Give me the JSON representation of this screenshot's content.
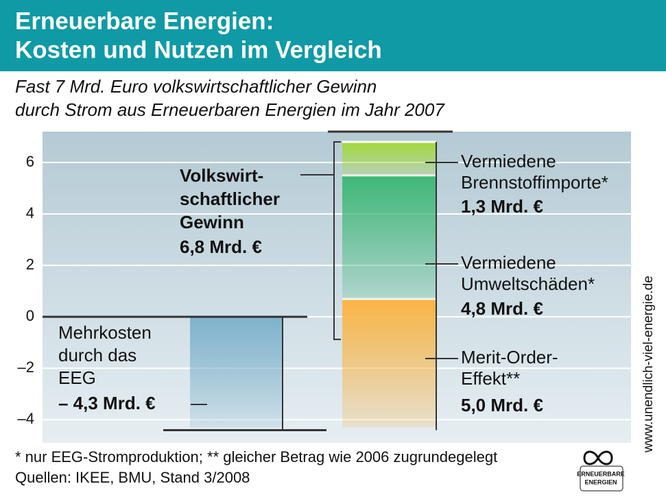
{
  "chart_data": {
    "type": "bar",
    "title": [
      "Erneuerbare Energien:",
      "Kosten und Nutzen im Vergleich"
    ],
    "subtitle": [
      "Fast 7 Mrd. Euro volkswirtschaftlicher Gewinn",
      "durch Strom aus Erneuerbaren Energien im Jahr 2007"
    ],
    "ylim": [
      -4.9,
      7.2
    ],
    "yticks": [
      {
        "value": 6,
        "label": "6"
      },
      {
        "value": 4,
        "label": "4"
      },
      {
        "value": 2,
        "label": "2"
      },
      {
        "value": 0,
        "label": "0"
      },
      {
        "value": -2,
        "label": "–2"
      },
      {
        "value": -4,
        "label": "–4"
      }
    ],
    "grid": true,
    "cost": {
      "name": [
        "Mehrkosten",
        "durch das",
        "EEG"
      ],
      "value": -4.3,
      "value_label": "– 4,3  Mrd. €",
      "color": "#7fb2cc"
    },
    "series": [
      {
        "name": [
          "Merit-Order-",
          "Effekt**"
        ],
        "value": 5.0,
        "value_label": "5,0  Mrd. €",
        "color": "#fbb545"
      },
      {
        "name": [
          "Vermiedene",
          "Umweltschäden*"
        ],
        "value": 4.8,
        "value_label": "4,8  Mrd. €",
        "color": "#3fb877"
      },
      {
        "name": [
          "Vermiedene",
          "Brennstoffimporte*"
        ],
        "value": 1.3,
        "value_label": "1,3  Mrd. €",
        "color": "#a3d93a"
      }
    ],
    "gain": {
      "name": [
        "Volkswirt-",
        "schaftlicher",
        "Gewinn"
      ],
      "value": 6.8,
      "value_label": "6,8 Mrd. €"
    },
    "footnote": "* nur EEG-Stromproduktion; ** gleicher Betrag wie 2006 zugrundegelegt",
    "source": "Quellen:  IKEE, BMU, Stand 3/2008",
    "side_text": "www.unendlich-viel-energie.de",
    "logo": [
      "ERNEUERBARE",
      "ENERGIEN"
    ]
  }
}
